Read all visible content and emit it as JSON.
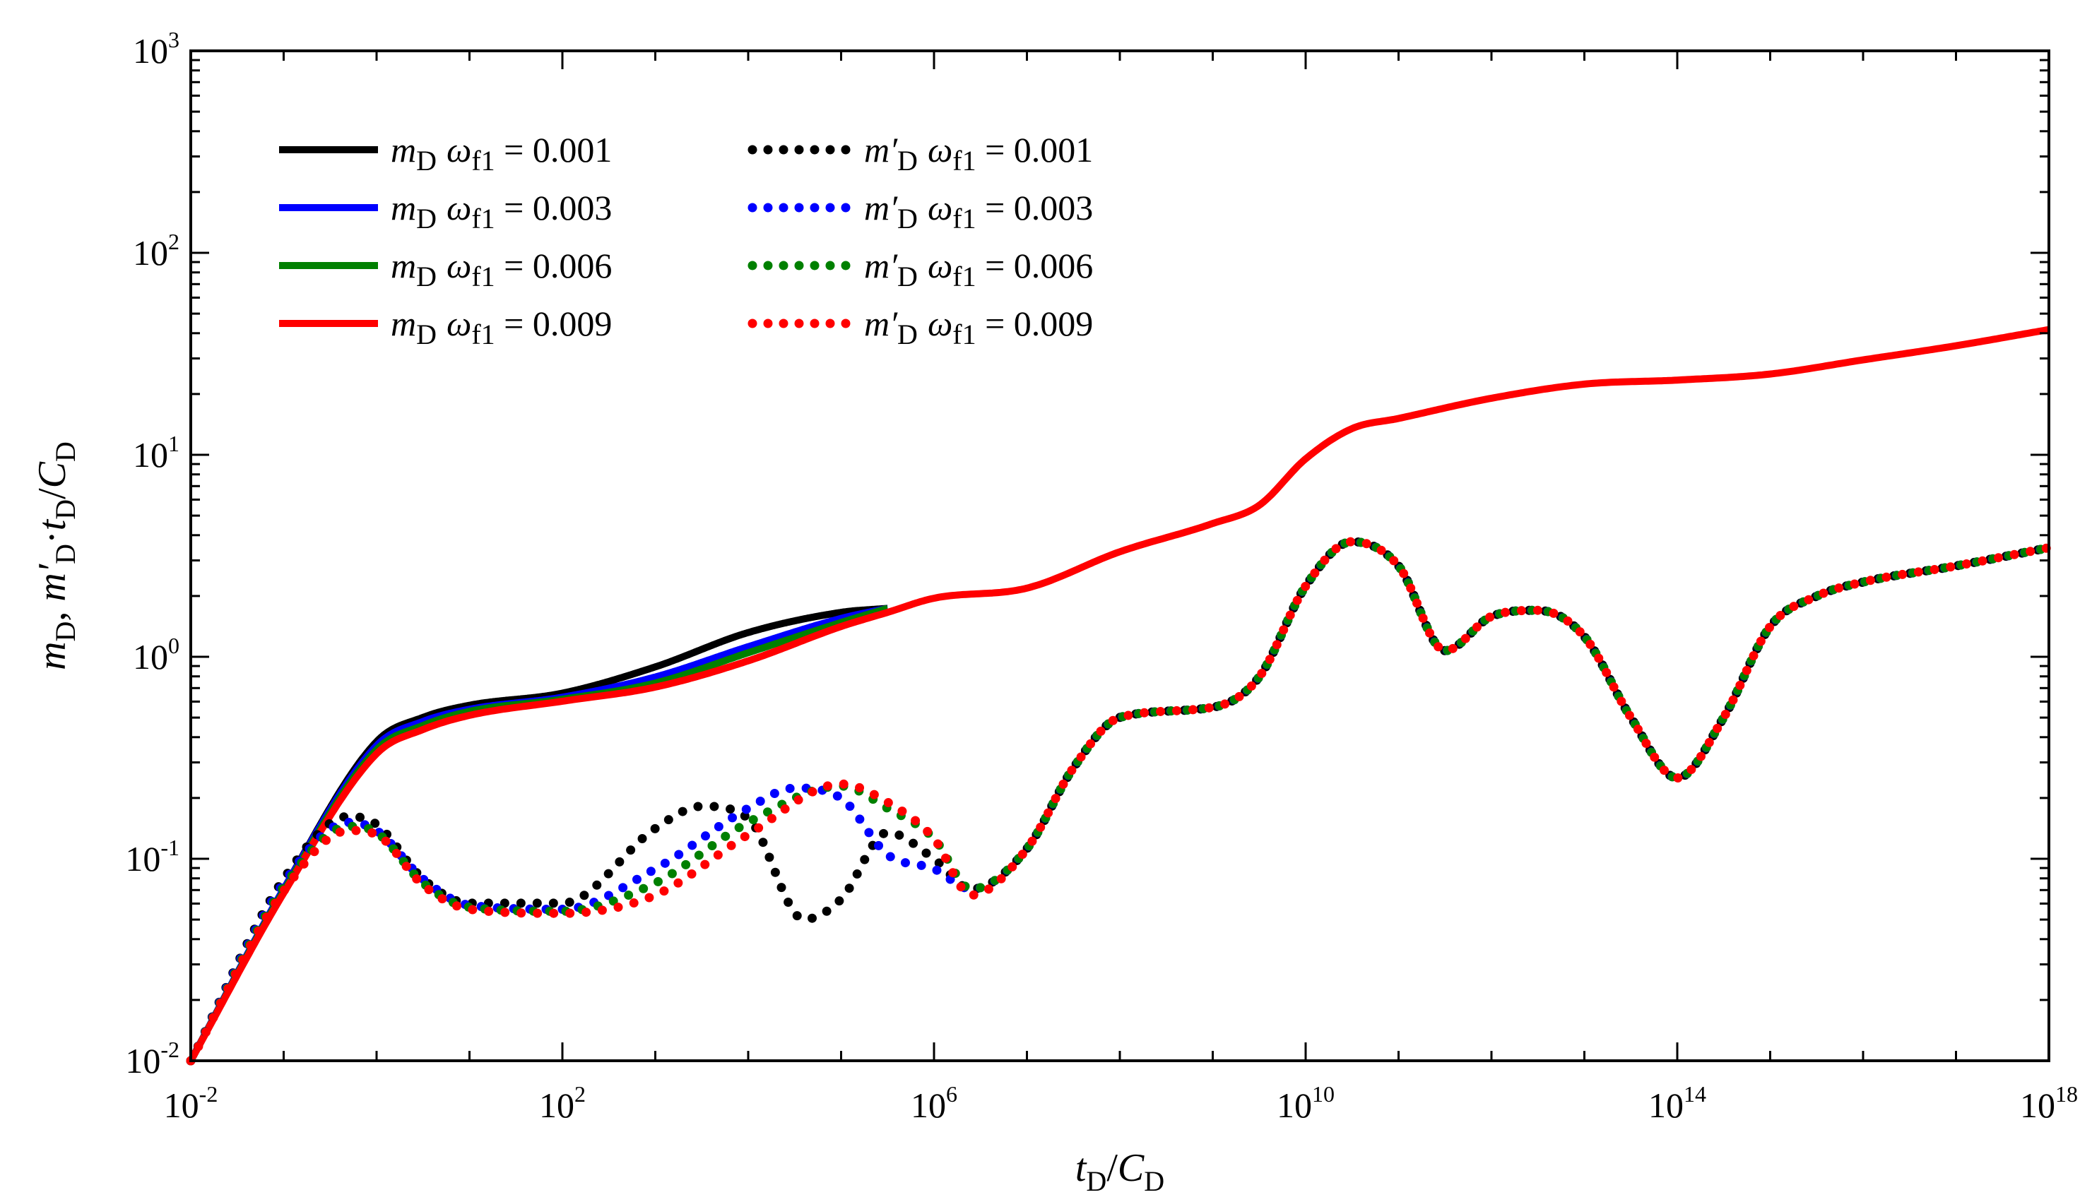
{
  "chart_data": {
    "type": "line",
    "x_scale": "log",
    "y_scale": "log",
    "xlim": [
      0.01,
      1e+18
    ],
    "ylim": [
      0.01,
      1000
    ],
    "x_ticks": [
      {
        "value": 0.01,
        "base": "10",
        "exp": "-2"
      },
      {
        "value": 100,
        "base": "10",
        "exp": "2"
      },
      {
        "value": 1000000.0,
        "base": "10",
        "exp": "6"
      },
      {
        "value": 10000000000.0,
        "base": "10",
        "exp": "10"
      },
      {
        "value": 100000000000000.0,
        "base": "10",
        "exp": "14"
      },
      {
        "value": 1e+18,
        "base": "10",
        "exp": "18"
      }
    ],
    "y_ticks": [
      {
        "value": 0.01,
        "base": "10",
        "exp": "-2"
      },
      {
        "value": 0.1,
        "base": "10",
        "exp": "-1"
      },
      {
        "value": 1,
        "base": "10",
        "exp": "0"
      },
      {
        "value": 10,
        "base": "10",
        "exp": "1"
      },
      {
        "value": 100,
        "base": "10",
        "exp": "2"
      },
      {
        "value": 1000,
        "base": "10",
        "exp": "3"
      }
    ],
    "xlabel": {
      "t": "t",
      "t_sub": "D",
      "slash": "/",
      "c": "C",
      "c_sub": "D"
    },
    "ylabel": {
      "m": "m",
      "m_sub": "D",
      "sep": ", ",
      "mp": "m′",
      "mp_sub": "D",
      "dot": "·",
      "t": "t",
      "t_sub": "D",
      "slash": "/",
      "c": "C",
      "c_sub": "D"
    },
    "colors": {
      "black": "#000000",
      "blue": "#0000ff",
      "green": "#008000",
      "red": "#ff0000"
    },
    "legend": [
      {
        "style": "solid",
        "color": "#000000",
        "var": "m",
        "var_sub": "D",
        "omega": "ω",
        "omega_sub": "f1",
        "value": " = 0.001"
      },
      {
        "style": "solid",
        "color": "#0000ff",
        "var": "m",
        "var_sub": "D",
        "omega": "ω",
        "omega_sub": "f1",
        "value": " = 0.003"
      },
      {
        "style": "solid",
        "color": "#008000",
        "var": "m",
        "var_sub": "D",
        "omega": "ω",
        "omega_sub": "f1",
        "value": " = 0.006"
      },
      {
        "style": "solid",
        "color": "#ff0000",
        "var": "m",
        "var_sub": "D",
        "omega": "ω",
        "omega_sub": "f1",
        "value": " = 0.009"
      },
      {
        "style": "dotted",
        "color": "#000000",
        "var": "m′",
        "var_sub": "D",
        "omega": "ω",
        "omega_sub": "f1",
        "value": " = 0.001"
      },
      {
        "style": "dotted",
        "color": "#0000ff",
        "var": "m′",
        "var_sub": "D",
        "omega": "ω",
        "omega_sub": "f1",
        "value": " = 0.003"
      },
      {
        "style": "dotted",
        "color": "#008000",
        "var": "m′",
        "var_sub": "D",
        "omega": "ω",
        "omega_sub": "f1",
        "value": " = 0.006"
      },
      {
        "style": "dotted",
        "color": "#ff0000",
        "var": "m′",
        "var_sub": "D",
        "omega": "ω",
        "omega_sub": "f1",
        "value": " = 0.009"
      }
    ],
    "series": [
      {
        "name": "mD ωf1 = 0.001",
        "style": "solid",
        "color": "#000000",
        "points": [
          [
            -2,
            -2
          ],
          [
            -1,
            -1.15
          ],
          [
            0,
            -0.42
          ],
          [
            0.5,
            -0.3
          ],
          [
            1,
            -0.24
          ],
          [
            2,
            -0.18
          ],
          [
            3,
            -0.05
          ],
          [
            4,
            0.12
          ],
          [
            5,
            0.22
          ],
          [
            5.5,
            0.24
          ]
        ]
      },
      {
        "name": "mD ωf1 = 0.003",
        "style": "solid",
        "color": "#0000ff",
        "points": [
          [
            -2,
            -2
          ],
          [
            -1,
            -1.15
          ],
          [
            0,
            -0.44
          ],
          [
            0.5,
            -0.32
          ],
          [
            1,
            -0.26
          ],
          [
            2,
            -0.2
          ],
          [
            3,
            -0.1
          ],
          [
            4,
            0.05
          ],
          [
            5,
            0.19
          ],
          [
            5.5,
            0.24
          ]
        ]
      },
      {
        "name": "mD ωf1 = 0.006",
        "style": "solid",
        "color": "#008000",
        "points": [
          [
            -2,
            -2
          ],
          [
            -1,
            -1.16
          ],
          [
            0,
            -0.46
          ],
          [
            0.5,
            -0.34
          ],
          [
            1,
            -0.27
          ],
          [
            2,
            -0.21
          ],
          [
            3,
            -0.13
          ],
          [
            4,
            0.02
          ],
          [
            5,
            0.17
          ],
          [
            5.5,
            0.24
          ]
        ]
      },
      {
        "name": "mD ωf1 = 0.009",
        "style": "solid",
        "color": "#ff0000",
        "points": [
          [
            -2,
            -2
          ],
          [
            -1,
            -1.17
          ],
          [
            0,
            -0.48
          ],
          [
            0.5,
            -0.36
          ],
          [
            1,
            -0.29
          ],
          [
            2,
            -0.22
          ],
          [
            3,
            -0.15
          ],
          [
            4,
            -0.02
          ],
          [
            5,
            0.15
          ],
          [
            5.5,
            0.22
          ],
          [
            6,
            0.29
          ],
          [
            7,
            0.34
          ],
          [
            8,
            0.52
          ],
          [
            9,
            0.66
          ],
          [
            9.5,
            0.75
          ],
          [
            10,
            0.98
          ],
          [
            10.5,
            1.13
          ],
          [
            11,
            1.18
          ],
          [
            12,
            1.28
          ],
          [
            13,
            1.35
          ],
          [
            14,
            1.37
          ],
          [
            15,
            1.4
          ],
          [
            16,
            1.47
          ],
          [
            17,
            1.54
          ],
          [
            18,
            1.62
          ]
        ]
      },
      {
        "name": "m′D ωf1 = 0.001",
        "style": "dotted",
        "color": "#000000",
        "points": [
          [
            -2,
            -2
          ],
          [
            -1,
            -1.1
          ],
          [
            -0.3,
            -0.79
          ],
          [
            0,
            -0.83
          ],
          [
            0.5,
            -1.1
          ],
          [
            1,
            -1.22
          ],
          [
            2,
            -1.22
          ],
          [
            3,
            -0.85
          ],
          [
            3.5,
            -0.74
          ],
          [
            4,
            -0.8
          ],
          [
            4.6,
            -1.3
          ],
          [
            5,
            -1.2
          ],
          [
            5.5,
            -0.87
          ],
          [
            6,
            -1.0
          ],
          [
            6.4,
            -1.15
          ],
          [
            7,
            -0.95
          ],
          [
            7.5,
            -0.55
          ],
          [
            8,
            -0.3
          ],
          [
            9,
            -0.25
          ],
          [
            9.5,
            -0.1
          ],
          [
            10,
            0.35
          ],
          [
            10.5,
            0.57
          ],
          [
            11,
            0.45
          ],
          [
            11.5,
            0.03
          ],
          [
            12,
            0.2
          ],
          [
            12.5,
            0.23
          ],
          [
            13,
            0.1
          ],
          [
            13.5,
            -0.3
          ],
          [
            14,
            -0.6
          ],
          [
            14.5,
            -0.3
          ],
          [
            15,
            0.15
          ],
          [
            15.5,
            0.3
          ],
          [
            16,
            0.37
          ],
          [
            17,
            0.45
          ],
          [
            18,
            0.54
          ]
        ]
      },
      {
        "name": "m′D ωf1 = 0.003",
        "style": "dotted",
        "color": "#0000ff",
        "points": [
          [
            -2,
            -2
          ],
          [
            -1,
            -1.12
          ],
          [
            -0.3,
            -0.82
          ],
          [
            0,
            -0.86
          ],
          [
            0.5,
            -1.1
          ],
          [
            1,
            -1.23
          ],
          [
            2,
            -1.25
          ],
          [
            3,
            -1.05
          ],
          [
            4,
            -0.75
          ],
          [
            4.5,
            -0.65
          ],
          [
            5,
            -0.7
          ],
          [
            5.5,
            -0.98
          ],
          [
            6,
            -1.05
          ],
          [
            6.4,
            -1.15
          ],
          [
            7,
            -0.95
          ],
          [
            7.5,
            -0.55
          ],
          [
            8,
            -0.3
          ],
          [
            9,
            -0.25
          ],
          [
            9.5,
            -0.1
          ],
          [
            10,
            0.35
          ],
          [
            10.5,
            0.57
          ],
          [
            11,
            0.45
          ],
          [
            11.5,
            0.03
          ],
          [
            12,
            0.2
          ],
          [
            12.5,
            0.23
          ],
          [
            13,
            0.1
          ],
          [
            13.5,
            -0.3
          ],
          [
            14,
            -0.6
          ],
          [
            14.5,
            -0.3
          ],
          [
            15,
            0.15
          ],
          [
            15.5,
            0.3
          ],
          [
            16,
            0.37
          ],
          [
            17,
            0.45
          ],
          [
            18,
            0.54
          ]
        ]
      },
      {
        "name": "m′D ωf1 = 0.006",
        "style": "dotted",
        "color": "#008000",
        "points": [
          [
            -2,
            -2
          ],
          [
            -1,
            -1.14
          ],
          [
            -0.3,
            -0.84
          ],
          [
            0,
            -0.87
          ],
          [
            0.5,
            -1.12
          ],
          [
            1,
            -1.24
          ],
          [
            2,
            -1.26
          ],
          [
            3,
            -1.12
          ],
          [
            4,
            -0.82
          ],
          [
            5,
            -0.64
          ],
          [
            5.5,
            -0.75
          ],
          [
            6,
            -0.9
          ],
          [
            6.4,
            -1.15
          ],
          [
            7,
            -0.95
          ],
          [
            7.5,
            -0.55
          ],
          [
            8,
            -0.3
          ],
          [
            9,
            -0.25
          ],
          [
            9.5,
            -0.1
          ],
          [
            10,
            0.35
          ],
          [
            10.5,
            0.57
          ],
          [
            11,
            0.45
          ],
          [
            11.5,
            0.03
          ],
          [
            12,
            0.2
          ],
          [
            12.5,
            0.23
          ],
          [
            13,
            0.1
          ],
          [
            13.5,
            -0.3
          ],
          [
            14,
            -0.6
          ],
          [
            14.5,
            -0.3
          ],
          [
            15,
            0.15
          ],
          [
            15.5,
            0.3
          ],
          [
            16,
            0.37
          ],
          [
            17,
            0.45
          ],
          [
            18,
            0.54
          ]
        ]
      },
      {
        "name": "m′D ωf1 = 0.009",
        "style": "dotted",
        "color": "#ff0000",
        "points": [
          [
            -2,
            -2
          ],
          [
            -1,
            -1.16
          ],
          [
            -0.3,
            -0.86
          ],
          [
            0,
            -0.88
          ],
          [
            0.5,
            -1.13
          ],
          [
            1,
            -1.25
          ],
          [
            2,
            -1.27
          ],
          [
            3,
            -1.18
          ],
          [
            4,
            -0.88
          ],
          [
            5,
            -0.63
          ],
          [
            5.5,
            -0.72
          ],
          [
            6,
            -0.9
          ],
          [
            6.4,
            -1.18
          ],
          [
            7,
            -0.95
          ],
          [
            7.5,
            -0.55
          ],
          [
            8,
            -0.3
          ],
          [
            9,
            -0.25
          ],
          [
            9.5,
            -0.1
          ],
          [
            10,
            0.35
          ],
          [
            10.5,
            0.57
          ],
          [
            11,
            0.45
          ],
          [
            11.5,
            0.03
          ],
          [
            12,
            0.2
          ],
          [
            12.5,
            0.23
          ],
          [
            13,
            0.1
          ],
          [
            13.5,
            -0.3
          ],
          [
            14,
            -0.6
          ],
          [
            14.5,
            -0.3
          ],
          [
            15,
            0.15
          ],
          [
            15.5,
            0.3
          ],
          [
            16,
            0.37
          ],
          [
            17,
            0.45
          ],
          [
            18,
            0.54
          ]
        ]
      }
    ]
  }
}
